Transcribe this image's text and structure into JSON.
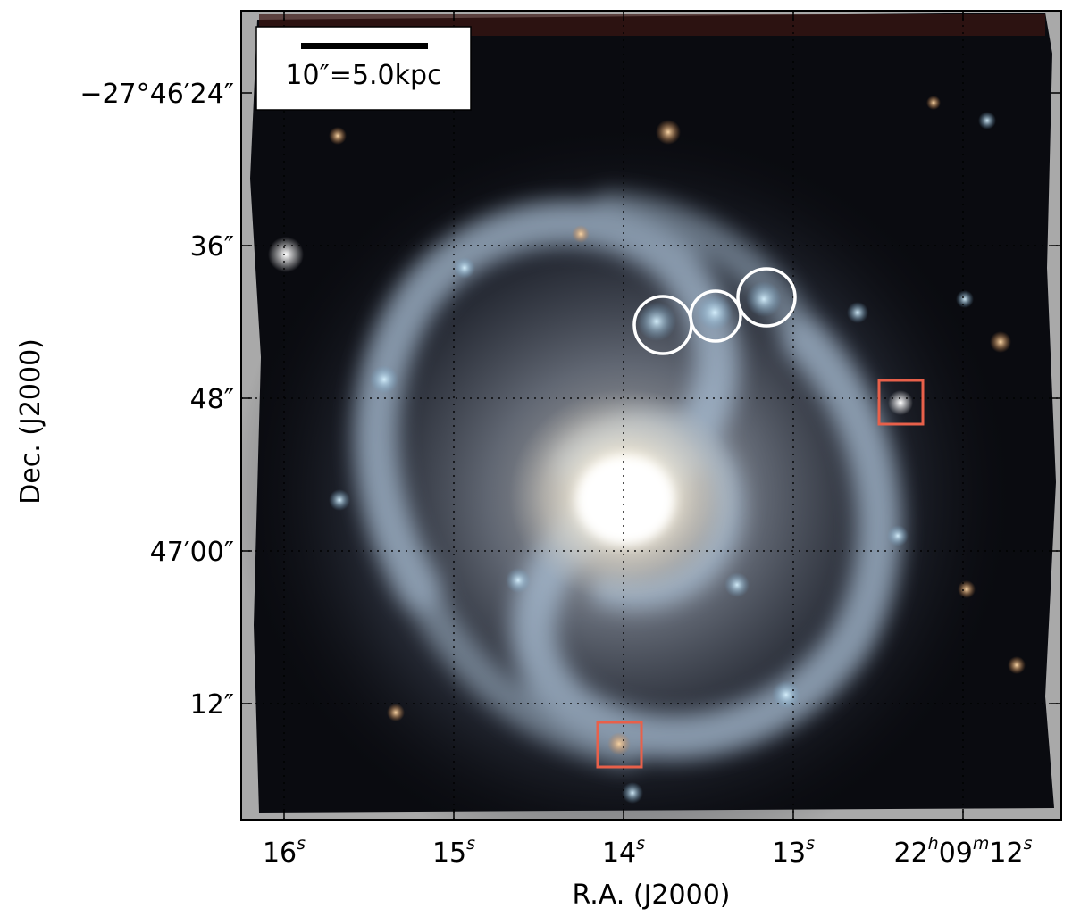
{
  "figure": {
    "xlabel": "R.A. (J2000)",
    "ylabel": "Dec. (J2000)",
    "scalebar_label": "10″=5.0kpc",
    "y_ticks": [
      {
        "main": "−27°46′24″"
      },
      {
        "main": "36″"
      },
      {
        "main": "48″"
      },
      {
        "main": "47′00″"
      },
      {
        "main": "12″"
      }
    ],
    "x_ticks": [
      {
        "main": "16",
        "sup": "s"
      },
      {
        "main": "15",
        "sup": "s"
      },
      {
        "main": "14",
        "sup": "s"
      },
      {
        "main": "13",
        "sup": "s"
      },
      {
        "main": "22",
        "sup": "h",
        "main2": "09",
        "sup2": "m",
        "main3": "12",
        "sup3": "s"
      }
    ],
    "colors": {
      "frame": "#000000",
      "image_bg": "#0a0b10",
      "border_grey": "#a9a9a9",
      "galaxy_core": "#fffdf2",
      "galaxy_arm": "#9fb4cc",
      "circle_marker": "#ffffff",
      "box_marker": "#e8604a",
      "grid": "#000000"
    },
    "markers": {
      "circles_count": 3,
      "boxes_count": 2
    }
  }
}
